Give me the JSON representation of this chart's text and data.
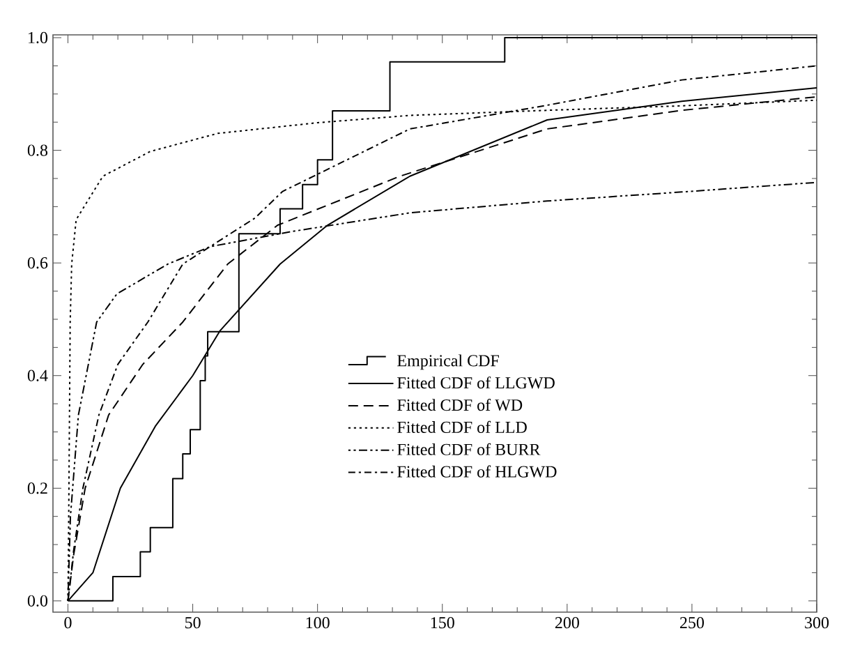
{
  "chart_data": {
    "type": "line",
    "xlim": [
      -6,
      300
    ],
    "ylim": [
      -0.02,
      1.005
    ],
    "xticks": [
      0,
      50,
      100,
      150,
      200,
      250,
      300
    ],
    "yticks": [
      {
        "value": 0,
        "label": "0.0"
      },
      {
        "value": 0.2,
        "label": "0.2"
      },
      {
        "value": 0.4,
        "label": "0.4"
      },
      {
        "value": 0.6,
        "label": "0.6"
      },
      {
        "value": 0.8,
        "label": "0.8"
      },
      {
        "value": 1,
        "label": "1.0"
      }
    ],
    "legend": "right",
    "grid": false,
    "marker": "none",
    "series": [
      {
        "name": "Empirical CDF",
        "type": "step",
        "color": "#000000",
        "line_style": "solid",
        "x": [
          0,
          18,
          29,
          33,
          42,
          46,
          49,
          53,
          55,
          56,
          68.5,
          85,
          94,
          100,
          106,
          129,
          175,
          300
        ],
        "values": [
          0,
          0.043,
          0.087,
          0.13,
          0.217,
          0.261,
          0.304,
          0.391,
          0.435,
          0.478,
          0.652,
          0.696,
          0.739,
          0.783,
          0.87,
          0.957,
          1,
          1
        ]
      },
      {
        "name": "Fitted CDF of LLGWD",
        "color": "#000000",
        "line_style": "solid",
        "x": [
          0,
          10,
          21,
          35,
          50,
          61,
          85,
          104,
          137,
          192,
          246,
          300
        ],
        "values": [
          0,
          0.05,
          0.2,
          0.31,
          0.4,
          0.48,
          0.598,
          0.667,
          0.754,
          0.854,
          0.887,
          0.911
        ]
      },
      {
        "name": "Fitted CDF of WD",
        "color": "#000000",
        "line_style": "dashed",
        "x": [
          0,
          2.3,
          6.9,
          16.3,
          30,
          46,
          64,
          84,
          133,
          192,
          246,
          300
        ],
        "values": [
          0,
          0.082,
          0.2,
          0.33,
          0.42,
          0.495,
          0.598,
          0.667,
          0.754,
          0.838,
          0.871,
          0.895
        ]
      },
      {
        "name": "Fitted CDF of LLD",
        "color": "#000000",
        "line_style": "dotted",
        "x": [
          0,
          0.2,
          0.9,
          1.5,
          3.3,
          14,
          33,
          60,
          100,
          137,
          192,
          246,
          300
        ],
        "values": [
          0,
          0.082,
          0.495,
          0.598,
          0.677,
          0.754,
          0.798,
          0.83,
          0.849,
          0.862,
          0.871,
          0.879,
          0.889
        ]
      },
      {
        "name": "Fitted CDF of BURR",
        "color": "#000000",
        "line_style": "dashdotdot",
        "x": [
          0,
          1,
          4.2,
          11.5,
          19.6,
          40,
          57,
          90,
          137,
          192,
          246,
          300
        ],
        "values": [
          0,
          0.15,
          0.33,
          0.495,
          0.545,
          0.598,
          0.629,
          0.656,
          0.689,
          0.71,
          0.726,
          0.743
        ]
      },
      {
        "name": "Fitted CDF of HLGWD",
        "color": "#000000",
        "line_style": "dashdot",
        "x": [
          0,
          2.3,
          6,
          12.4,
          20,
          32,
          46,
          75,
          86,
          137,
          192,
          246,
          300
        ],
        "values": [
          0,
          0.09,
          0.2,
          0.33,
          0.42,
          0.495,
          0.598,
          0.68,
          0.727,
          0.838,
          0.88,
          0.925,
          0.95
        ]
      }
    ]
  }
}
